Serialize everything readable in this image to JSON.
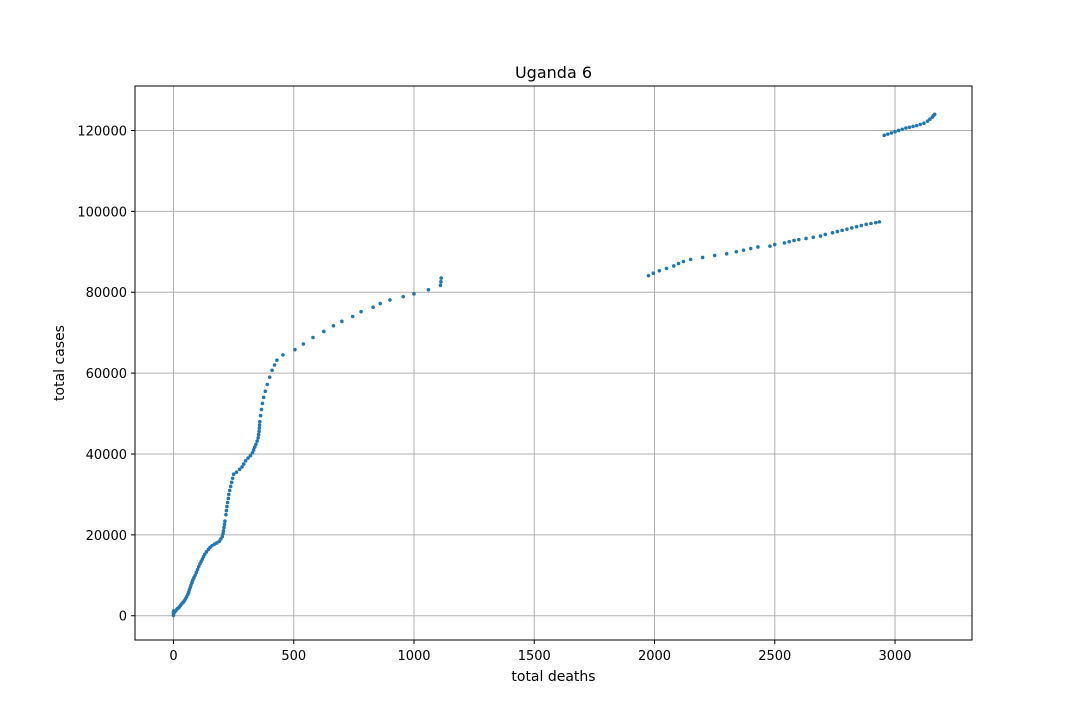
{
  "chart_data": {
    "type": "scatter",
    "title": "Uganda 6",
    "xlabel": "total deaths",
    "ylabel": "total cases",
    "xlim": [
      -160,
      3320
    ],
    "ylim": [
      -6000,
      131000
    ],
    "xticks": [
      0,
      500,
      1000,
      1500,
      2000,
      2500,
      3000
    ],
    "yticks": [
      0,
      20000,
      40000,
      60000,
      80000,
      100000,
      120000
    ],
    "grid": true,
    "marker_color": "#1f77b4",
    "series": [
      {
        "name": "",
        "points": [
          [
            0,
            100
          ],
          [
            0,
            500
          ],
          [
            0,
            900
          ],
          [
            1,
            1200
          ],
          [
            5,
            900
          ],
          [
            10,
            1300
          ],
          [
            15,
            1700
          ],
          [
            20,
            1900
          ],
          [
            25,
            2200
          ],
          [
            30,
            2600
          ],
          [
            35,
            3000
          ],
          [
            40,
            3300
          ],
          [
            45,
            3700
          ],
          [
            50,
            4200
          ],
          [
            55,
            4700
          ],
          [
            60,
            5300
          ],
          [
            63,
            5800
          ],
          [
            66,
            6400
          ],
          [
            70,
            7000
          ],
          [
            73,
            7600
          ],
          [
            77,
            8200
          ],
          [
            80,
            8800
          ],
          [
            85,
            9400
          ],
          [
            90,
            10000
          ],
          [
            95,
            10700
          ],
          [
            100,
            11400
          ],
          [
            105,
            12100
          ],
          [
            110,
            12800
          ],
          [
            115,
            13400
          ],
          [
            120,
            14000
          ],
          [
            125,
            14600
          ],
          [
            130,
            15200
          ],
          [
            137,
            15800
          ],
          [
            145,
            16400
          ],
          [
            152,
            16900
          ],
          [
            160,
            17300
          ],
          [
            170,
            17700
          ],
          [
            180,
            18000
          ],
          [
            190,
            18400
          ],
          [
            197,
            19000
          ],
          [
            203,
            19600
          ],
          [
            206,
            20300
          ],
          [
            208,
            21000
          ],
          [
            210,
            21800
          ],
          [
            212,
            22600
          ],
          [
            214,
            23400
          ],
          [
            218,
            25000
          ],
          [
            220,
            26000
          ],
          [
            222,
            27000
          ],
          [
            225,
            28000
          ],
          [
            228,
            29000
          ],
          [
            230,
            30000
          ],
          [
            234,
            31000
          ],
          [
            238,
            32000
          ],
          [
            242,
            33000
          ],
          [
            246,
            34000
          ],
          [
            250,
            35000
          ],
          [
            262,
            35500
          ],
          [
            275,
            36200
          ],
          [
            285,
            36800
          ],
          [
            292,
            37500
          ],
          [
            300,
            38300
          ],
          [
            310,
            39000
          ],
          [
            320,
            39600
          ],
          [
            328,
            40300
          ],
          [
            333,
            41000
          ],
          [
            338,
            41700
          ],
          [
            343,
            42400
          ],
          [
            348,
            43200
          ],
          [
            352,
            44000
          ],
          [
            354,
            44800
          ],
          [
            356,
            45600
          ],
          [
            357,
            46400
          ],
          [
            358,
            47200
          ],
          [
            359,
            48000
          ],
          [
            362,
            49500
          ],
          [
            366,
            51000
          ],
          [
            370,
            52500
          ],
          [
            375,
            54000
          ],
          [
            382,
            55500
          ],
          [
            390,
            57200
          ],
          [
            400,
            59000
          ],
          [
            410,
            60700
          ],
          [
            420,
            62000
          ],
          [
            430,
            63200
          ],
          [
            455,
            64500
          ],
          [
            505,
            65800
          ],
          [
            540,
            67200
          ],
          [
            580,
            68800
          ],
          [
            625,
            70300
          ],
          [
            665,
            71700
          ],
          [
            700,
            72800
          ],
          [
            745,
            74000
          ],
          [
            780,
            75200
          ],
          [
            830,
            76300
          ],
          [
            860,
            77200
          ],
          [
            900,
            78100
          ],
          [
            955,
            78900
          ],
          [
            1000,
            79600
          ],
          [
            1060,
            80600
          ],
          [
            1110,
            81700
          ],
          [
            1112,
            82600
          ],
          [
            1113,
            83500
          ],
          [
            1975,
            84100
          ],
          [
            1995,
            84700
          ],
          [
            2020,
            85300
          ],
          [
            2050,
            85900
          ],
          [
            2080,
            86500
          ],
          [
            2100,
            87100
          ],
          [
            2120,
            87600
          ],
          [
            2150,
            88100
          ],
          [
            2200,
            88600
          ],
          [
            2250,
            89100
          ],
          [
            2300,
            89500
          ],
          [
            2340,
            90000
          ],
          [
            2370,
            90400
          ],
          [
            2400,
            90800
          ],
          [
            2430,
            91200
          ],
          [
            2480,
            91400
          ],
          [
            2500,
            91800
          ],
          [
            2540,
            92200
          ],
          [
            2560,
            92500
          ],
          [
            2580,
            92800
          ],
          [
            2600,
            93000
          ],
          [
            2630,
            93300
          ],
          [
            2660,
            93600
          ],
          [
            2690,
            93900
          ],
          [
            2710,
            94300
          ],
          [
            2740,
            94700
          ],
          [
            2760,
            95000
          ],
          [
            2780,
            95300
          ],
          [
            2800,
            95600
          ],
          [
            2820,
            95900
          ],
          [
            2840,
            96200
          ],
          [
            2860,
            96500
          ],
          [
            2880,
            96800
          ],
          [
            2900,
            97000
          ],
          [
            2920,
            97200
          ],
          [
            2935,
            97400
          ],
          [
            2955,
            118800
          ],
          [
            2970,
            119100
          ],
          [
            2985,
            119400
          ],
          [
            3000,
            119700
          ],
          [
            3015,
            120000
          ],
          [
            3030,
            120300
          ],
          [
            3045,
            120600
          ],
          [
            3060,
            120800
          ],
          [
            3075,
            121000
          ],
          [
            3090,
            121200
          ],
          [
            3105,
            121500
          ],
          [
            3120,
            121800
          ],
          [
            3135,
            122300
          ],
          [
            3145,
            122800
          ],
          [
            3155,
            123300
          ],
          [
            3160,
            123700
          ],
          [
            3165,
            124000
          ]
        ]
      }
    ]
  }
}
